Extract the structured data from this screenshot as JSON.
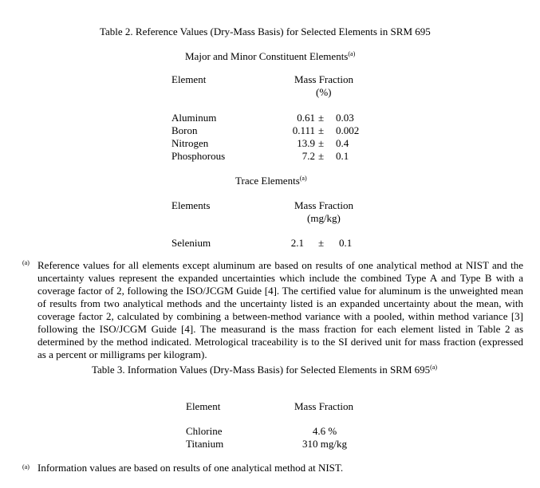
{
  "table2": {
    "title": "Table 2.  Reference Values (Dry-Mass Basis) for Selected Elements in SRM 695",
    "major_section": {
      "heading": "Major and Minor Constituent Elements",
      "heading_note": "(a)",
      "col_element": "Element",
      "col_mass_fraction": "Mass Fraction",
      "col_unit": "(%)",
      "rows": [
        {
          "element": "Aluminum",
          "value": "0.61",
          "pm": "±",
          "uncertainty": "0.03"
        },
        {
          "element": "Boron",
          "value": "0.111",
          "pm": "±",
          "uncertainty": "0.002"
        },
        {
          "element": "Nitrogen",
          "value": "13.9",
          "pm": "±",
          "uncertainty": "0.4"
        },
        {
          "element": "Phosphorous",
          "value": "7.2",
          "pm": "±",
          "uncertainty": "0.1"
        }
      ]
    },
    "trace_section": {
      "heading": "Trace Elements",
      "heading_note": "(a)",
      "col_element": "Elements",
      "col_mass_fraction": "Mass Fraction",
      "col_unit": "(mg/kg)",
      "rows": [
        {
          "element": "Selenium",
          "value": "2.1",
          "pm": "±",
          "uncertainty": "0.1"
        }
      ]
    },
    "footnote_marker": "(a)",
    "footnote": "Reference values for all elements except aluminum are based on results of one analytical method at NIST and the uncertainty values represent the expanded uncertainties which include the combined Type A and Type B with a coverage factor of 2, following the ISO/JCGM Guide [4].  The certified value for aluminum is the unweighted mean of results from two analytical methods and the uncertainty listed is an expanded uncertainty about the mean, with coverage factor 2, calculated by combining a between-method variance with a pooled, within method variance [3] following the ISO/JCGM Guide [4].  The measurand is the mass fraction for each element listed in Table 2 as determined by the method indicated.  Metrological traceability is to the SI derived unit for mass fraction (expressed as a percent or milligrams per kilogram)."
  },
  "table3": {
    "title": "Table 3.  Information Values (Dry-Mass Basis) for Selected Elements in SRM 695",
    "title_note": "(a)",
    "col_element": "Element",
    "col_mass_fraction": "Mass Fraction",
    "rows": [
      {
        "element": "Chlorine",
        "value": "4.6 %"
      },
      {
        "element": "Titanium",
        "value": "310 mg/kg"
      }
    ],
    "footnote_marker": "(a)",
    "footnote": "Information values are based on results of one analytical method at NIST."
  }
}
